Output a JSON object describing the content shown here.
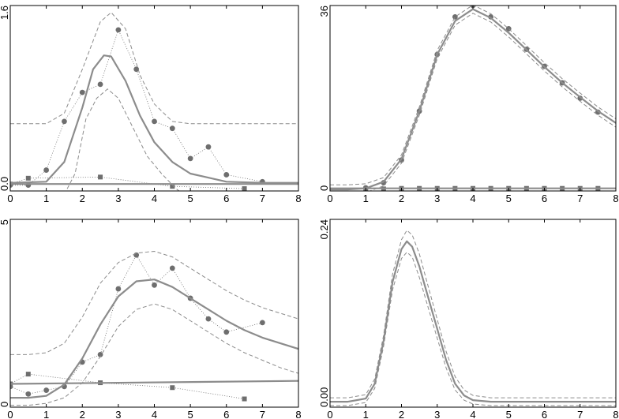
{
  "colors": {
    "curve": "#8c8c8c",
    "band": "#8c8c8c",
    "points": "#6e6e6e"
  },
  "chart_data": [
    {
      "type": "scatter",
      "position": "top-left",
      "xlim": [
        0,
        8
      ],
      "ylim": [
        0,
        1.6
      ],
      "xticks": [
        "0",
        "1",
        "2",
        "3",
        "4",
        "5",
        "6",
        "7",
        "8"
      ],
      "yticks": [
        "0.0",
        "1.6"
      ],
      "grid": false,
      "series": [
        {
          "kind": "points",
          "marker": "circle",
          "line": "dotted",
          "x": [
            0,
            0.5,
            1,
            1.5,
            2,
            2.5,
            3,
            3.5,
            4,
            4.5,
            5,
            5.5,
            6,
            7
          ],
          "y": [
            0.05,
            0.05,
            0.18,
            0.6,
            0.85,
            0.92,
            1.39,
            1.05,
            0.6,
            0.54,
            0.28,
            0.38,
            0.14,
            0.08
          ]
        },
        {
          "kind": "points",
          "marker": "square",
          "line": "dotted",
          "x": [
            0,
            0.5,
            2.5,
            4.5,
            6.5
          ],
          "y": [
            0.06,
            0.11,
            0.12,
            0.04,
            0.02
          ]
        },
        {
          "kind": "fit",
          "line": "solid",
          "x": [
            0,
            1,
            1.5,
            2,
            2.3,
            2.6,
            2.8,
            3.2,
            3.6,
            4,
            4.5,
            5,
            6,
            7,
            8
          ],
          "y": [
            0.07,
            0.08,
            0.25,
            0.72,
            1.05,
            1.17,
            1.16,
            0.95,
            0.65,
            0.42,
            0.25,
            0.15,
            0.08,
            0.07,
            0.07
          ]
        },
        {
          "kind": "fit-flat",
          "line": "solid",
          "x": [
            0,
            8
          ],
          "y": [
            0.06,
            0.06
          ]
        },
        {
          "kind": "band-upper",
          "line": "dashed",
          "x": [
            0,
            0.5,
            1,
            1.5,
            2,
            2.5,
            2.8,
            3.2,
            3.6,
            4,
            4.5,
            5,
            5.5,
            6,
            6.5,
            7,
            7.5,
            8
          ],
          "y": [
            0.58,
            0.58,
            0.58,
            0.67,
            1.05,
            1.46,
            1.54,
            1.4,
            1.0,
            0.75,
            0.6,
            0.58,
            0.58,
            0.58,
            0.58,
            0.58,
            0.58,
            0.58
          ]
        },
        {
          "kind": "band-lower",
          "line": "dashed",
          "x": [
            1.5,
            1.8,
            2.1,
            2.4,
            2.7,
            3.0,
            3.4,
            3.8,
            4.2,
            4.6,
            4.9
          ],
          "y": [
            -0.03,
            0.15,
            0.62,
            0.8,
            0.88,
            0.8,
            0.55,
            0.3,
            0.15,
            0.02,
            -0.05
          ]
        }
      ]
    },
    {
      "type": "scatter",
      "position": "top-right",
      "xlim": [
        0,
        8
      ],
      "ylim": [
        0,
        36
      ],
      "xticks": [
        "0",
        "1",
        "2",
        "3",
        "4",
        "5",
        "6",
        "7",
        "8"
      ],
      "yticks": [
        "0",
        "36"
      ],
      "grid": false,
      "series": [
        {
          "kind": "points",
          "marker": "circle",
          "line": "none",
          "x": [
            1,
            1.5,
            2,
            2.5,
            3,
            3.5,
            4,
            4.5,
            5,
            5.5,
            6,
            6.5,
            7,
            7.5
          ],
          "y": [
            0.6,
            1.6,
            6.0,
            15.5,
            26.5,
            33.8,
            36.0,
            33.8,
            31.5,
            27.5,
            24.2,
            21.0,
            18.0,
            15.3
          ]
        },
        {
          "kind": "points",
          "marker": "square",
          "line": "none",
          "x": [
            1,
            1.5,
            2,
            2.5,
            3,
            3.5,
            4,
            4.5,
            5,
            5.5,
            6,
            6.5,
            7,
            7.5
          ],
          "y": [
            0.4,
            0.4,
            0.5,
            0.5,
            0.5,
            0.5,
            0.5,
            0.5,
            0.5,
            0.5,
            0.5,
            0.5,
            0.5,
            0.5
          ]
        },
        {
          "kind": "fit",
          "line": "solid",
          "x": [
            0,
            0.5,
            1,
            1.5,
            2,
            2.5,
            3,
            3.5,
            4,
            4.5,
            5,
            5.5,
            6,
            6.5,
            7,
            7.5,
            8
          ],
          "y": [
            0.3,
            0.3,
            0.5,
            1.8,
            6.2,
            15.5,
            26.5,
            33.0,
            35.3,
            33.6,
            30.7,
            27.4,
            24.1,
            21.0,
            18.2,
            15.5,
            13.2
          ]
        },
        {
          "kind": "fit-flat",
          "line": "solid",
          "x": [
            0,
            8
          ],
          "y": [
            0.5,
            0.5
          ]
        },
        {
          "kind": "band-upper",
          "line": "dashed",
          "x": [
            0,
            0.5,
            1,
            1.5,
            2,
            2.5,
            3,
            3.5,
            4,
            4.5,
            5,
            5.5,
            6,
            6.5,
            7,
            7.5,
            8
          ],
          "y": [
            1.2,
            1.2,
            1.4,
            2.6,
            7.0,
            16.3,
            27.3,
            33.8,
            36.1,
            34.4,
            31.5,
            28.2,
            24.9,
            21.8,
            19.0,
            16.3,
            14.0
          ]
        },
        {
          "kind": "band-lower",
          "line": "dashed",
          "x": [
            0,
            0.5,
            1,
            1.5,
            2,
            2.5,
            3,
            3.5,
            4,
            4.5,
            5,
            5.5,
            6,
            6.5,
            7,
            7.5,
            8
          ],
          "y": [
            -0.4,
            -0.4,
            -0.3,
            1.0,
            5.4,
            14.7,
            25.7,
            32.2,
            34.5,
            32.8,
            29.9,
            26.6,
            23.3,
            20.2,
            17.4,
            14.7,
            12.4
          ]
        }
      ]
    },
    {
      "type": "scatter",
      "position": "bottom-left",
      "xlim": [
        0,
        8
      ],
      "ylim": [
        0,
        5
      ],
      "xticks": [
        "0",
        "1",
        "2",
        "3",
        "4",
        "5",
        "6",
        "7",
        "8"
      ],
      "yticks": [
        "0",
        "5"
      ],
      "grid": false,
      "series": [
        {
          "kind": "points",
          "marker": "circle",
          "line": "dotted",
          "x": [
            0,
            0.5,
            1,
            1.5,
            2,
            2.5,
            3,
            3.5,
            4,
            4.5,
            5,
            5.5,
            6,
            7
          ],
          "y": [
            0.55,
            0.35,
            0.45,
            0.55,
            1.2,
            1.4,
            3.15,
            4.05,
            3.25,
            3.7,
            2.9,
            2.35,
            2.0,
            2.25
          ]
        },
        {
          "kind": "points",
          "marker": "square",
          "line": "dotted",
          "x": [
            0,
            0.5,
            2.5,
            4.5,
            6.5
          ],
          "y": [
            0.62,
            0.88,
            0.65,
            0.52,
            0.22
          ]
        },
        {
          "kind": "fit",
          "line": "solid",
          "x": [
            0,
            0.5,
            1,
            1.5,
            2,
            2.5,
            3,
            3.5,
            4,
            4.5,
            5,
            5.5,
            6,
            6.5,
            7,
            7.5,
            8
          ],
          "y": [
            0.25,
            0.25,
            0.3,
            0.6,
            1.3,
            2.2,
            2.95,
            3.35,
            3.4,
            3.2,
            2.9,
            2.6,
            2.3,
            2.05,
            1.85,
            1.7,
            1.55
          ]
        },
        {
          "kind": "fit-flat",
          "line": "solid",
          "x": [
            0,
            8
          ],
          "y": [
            0.62,
            0.7
          ]
        },
        {
          "kind": "band-upper",
          "line": "dashed",
          "x": [
            0,
            0.5,
            1,
            1.5,
            2,
            2.5,
            3,
            3.5,
            4,
            4.5,
            5,
            5.5,
            6,
            6.5,
            7,
            7.5,
            8
          ],
          "y": [
            1.4,
            1.4,
            1.45,
            1.7,
            2.4,
            3.3,
            3.85,
            4.1,
            4.15,
            4.0,
            3.7,
            3.4,
            3.1,
            2.85,
            2.65,
            2.5,
            2.35
          ]
        },
        {
          "kind": "band-lower",
          "line": "dashed",
          "x": [
            0,
            0.5,
            1,
            1.5,
            2,
            2.5,
            3,
            3.5,
            4,
            4.5,
            5,
            5.5,
            6,
            6.5,
            7,
            7.5,
            8
          ],
          "y": [
            0.05,
            0.05,
            0.1,
            0.25,
            0.65,
            1.35,
            2.15,
            2.6,
            2.75,
            2.6,
            2.3,
            2.0,
            1.7,
            1.45,
            1.25,
            1.05,
            0.9
          ]
        }
      ]
    },
    {
      "type": "line",
      "position": "bottom-right",
      "xlim": [
        0,
        8
      ],
      "ylim": [
        0,
        0.24
      ],
      "xticks": [
        "0",
        "1",
        "2",
        "3",
        "4",
        "5",
        "6",
        "7",
        "8"
      ],
      "yticks": [
        "0.00",
        "0.24"
      ],
      "grid": false,
      "series": [
        {
          "kind": "fit",
          "line": "solid",
          "x": [
            0,
            0.5,
            1,
            1.25,
            1.5,
            1.75,
            2,
            2.15,
            2.3,
            2.5,
            2.75,
            3,
            3.25,
            3.5,
            3.75,
            4,
            4.5,
            5,
            6,
            7,
            8
          ],
          "y": [
            0.007,
            0.007,
            0.011,
            0.03,
            0.085,
            0.16,
            0.202,
            0.212,
            0.205,
            0.18,
            0.14,
            0.1,
            0.06,
            0.03,
            0.015,
            0.009,
            0.007,
            0.007,
            0.007,
            0.007,
            0.007
          ]
        },
        {
          "kind": "band-upper",
          "line": "dashed",
          "x": [
            0,
            0.5,
            1,
            1.25,
            1.5,
            1.75,
            2,
            2.15,
            2.3,
            2.5,
            2.75,
            3,
            3.25,
            3.5,
            3.75,
            4,
            4.5,
            5,
            6,
            7,
            8
          ],
          "y": [
            0.012,
            0.012,
            0.016,
            0.036,
            0.092,
            0.17,
            0.214,
            0.226,
            0.22,
            0.196,
            0.154,
            0.112,
            0.071,
            0.039,
            0.022,
            0.015,
            0.012,
            0.012,
            0.012,
            0.012,
            0.012
          ]
        },
        {
          "kind": "band-lower",
          "line": "dashed",
          "x": [
            0,
            0.5,
            1,
            1.25,
            1.5,
            1.75,
            2,
            2.15,
            2.3,
            2.5,
            2.75,
            3,
            3.25,
            3.5,
            3.75,
            4,
            4.5,
            5,
            6,
            7,
            8
          ],
          "y": [
            0.002,
            0.002,
            0.006,
            0.024,
            0.078,
            0.15,
            0.19,
            0.198,
            0.192,
            0.166,
            0.127,
            0.088,
            0.05,
            0.022,
            0.009,
            0.004,
            0.002,
            0.002,
            0.002,
            0.002,
            0.002
          ]
        }
      ]
    }
  ]
}
